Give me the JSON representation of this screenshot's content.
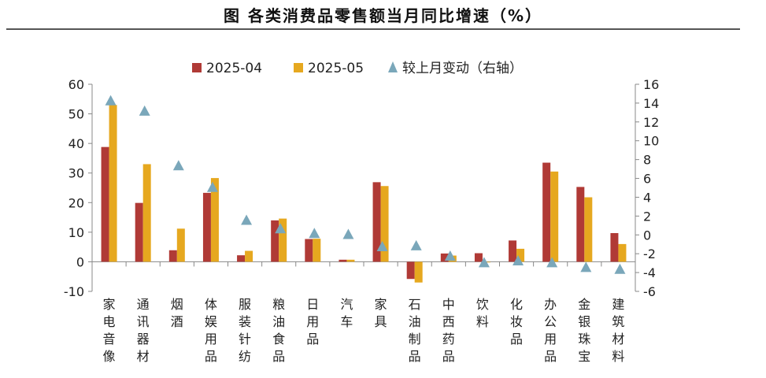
{
  "page_title": "图  各类消费品零售额当月同比增速（%）",
  "chart_data": {
    "type": "bar",
    "title": "图  各类消费品零售额当月同比增速（%）",
    "categories": [
      "家电音像",
      "通讯器材",
      "烟酒",
      "体娱用品",
      "服装针纺",
      "粮油食品",
      "日用品",
      "汽车",
      "家具",
      "石油制品",
      "中西药品",
      "饮料",
      "化妆品",
      "办公用品",
      "金银珠宝",
      "建筑材料"
    ],
    "series": [
      {
        "name": "2025-04",
        "type": "bar",
        "axis": "left",
        "color": "#b03a36",
        "values": [
          38.8,
          19.9,
          3.9,
          23.3,
          2.2,
          14.0,
          7.7,
          0.7,
          26.9,
          -5.8,
          2.8,
          2.9,
          7.2,
          33.5,
          25.3,
          9.7
        ]
      },
      {
        "name": "2025-05",
        "type": "bar",
        "axis": "left",
        "color": "#e6a81f",
        "values": [
          53.0,
          33.0,
          11.2,
          28.3,
          3.7,
          14.6,
          7.8,
          0.7,
          25.6,
          -7.0,
          2.1,
          -0.1,
          4.4,
          30.5,
          21.8,
          6.0
        ]
      },
      {
        "name": "较上月变动（右轴）",
        "type": "scatter",
        "axis": "right",
        "color": "#7aa7ba",
        "values": [
          14.2,
          13.1,
          7.3,
          5.0,
          1.5,
          0.6,
          0.1,
          0.0,
          -1.3,
          -1.2,
          -2.3,
          -3.0,
          -2.8,
          -3.0,
          -3.5,
          -3.7
        ]
      }
    ],
    "y_left": {
      "min": -10,
      "max": 60,
      "ticks": [
        "60",
        "50",
        "40",
        "30",
        "20",
        "10",
        "0",
        "-10"
      ],
      "tick_values": [
        60,
        50,
        40,
        30,
        20,
        10,
        0,
        -10
      ]
    },
    "y_right": {
      "min": -6,
      "max": 16,
      "ticks": [
        "16",
        "14",
        "12",
        "10",
        "8",
        "6",
        "4",
        "2",
        "0",
        "-2",
        "-4",
        "-6"
      ],
      "tick_values": [
        16,
        14,
        12,
        10,
        8,
        6,
        4,
        2,
        0,
        -2,
        -4,
        -6
      ]
    },
    "legend": [
      {
        "label": "2025-04",
        "marker": "square",
        "color": "#b03a36"
      },
      {
        "label": "2025-05",
        "marker": "square",
        "color": "#e6a81f"
      },
      {
        "label": "较上月变动（右轴）",
        "marker": "triangle",
        "color": "#7aa7ba"
      }
    ],
    "legend_position": "top-center",
    "grid": false
  }
}
